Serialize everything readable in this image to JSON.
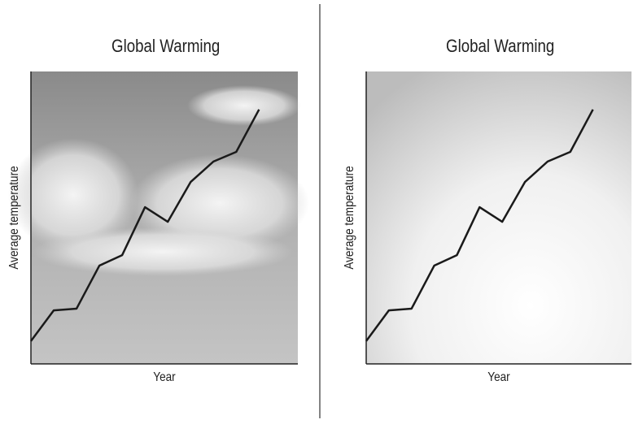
{
  "chart_data": [
    {
      "type": "line",
      "title": "Global Warming",
      "xlabel": "Year",
      "ylabel": "Average temperature",
      "x": [
        0,
        1,
        2,
        3,
        4,
        5,
        6,
        7,
        8,
        9,
        10
      ],
      "values": [
        7.8,
        18.3,
        18.9,
        33.6,
        37.2,
        53.6,
        48.6,
        62.2,
        69.2,
        72.5,
        87.0
      ],
      "color": "#1a1a1a",
      "xlim": [
        0,
        11.7
      ],
      "ylim": [
        0,
        100
      ]
    },
    {
      "type": "line",
      "title": "Global Warming",
      "xlabel": "Year",
      "ylabel": "Average temperature",
      "x": [
        0,
        1,
        2,
        3,
        4,
        5,
        6,
        7,
        8,
        9,
        10
      ],
      "values": [
        7.8,
        18.3,
        18.9,
        33.6,
        37.2,
        53.6,
        48.6,
        62.2,
        69.2,
        72.5,
        87.0
      ],
      "color": "#1a1a1a",
      "xlim": [
        0,
        11.7
      ],
      "ylim": [
        0,
        100
      ]
    }
  ]
}
